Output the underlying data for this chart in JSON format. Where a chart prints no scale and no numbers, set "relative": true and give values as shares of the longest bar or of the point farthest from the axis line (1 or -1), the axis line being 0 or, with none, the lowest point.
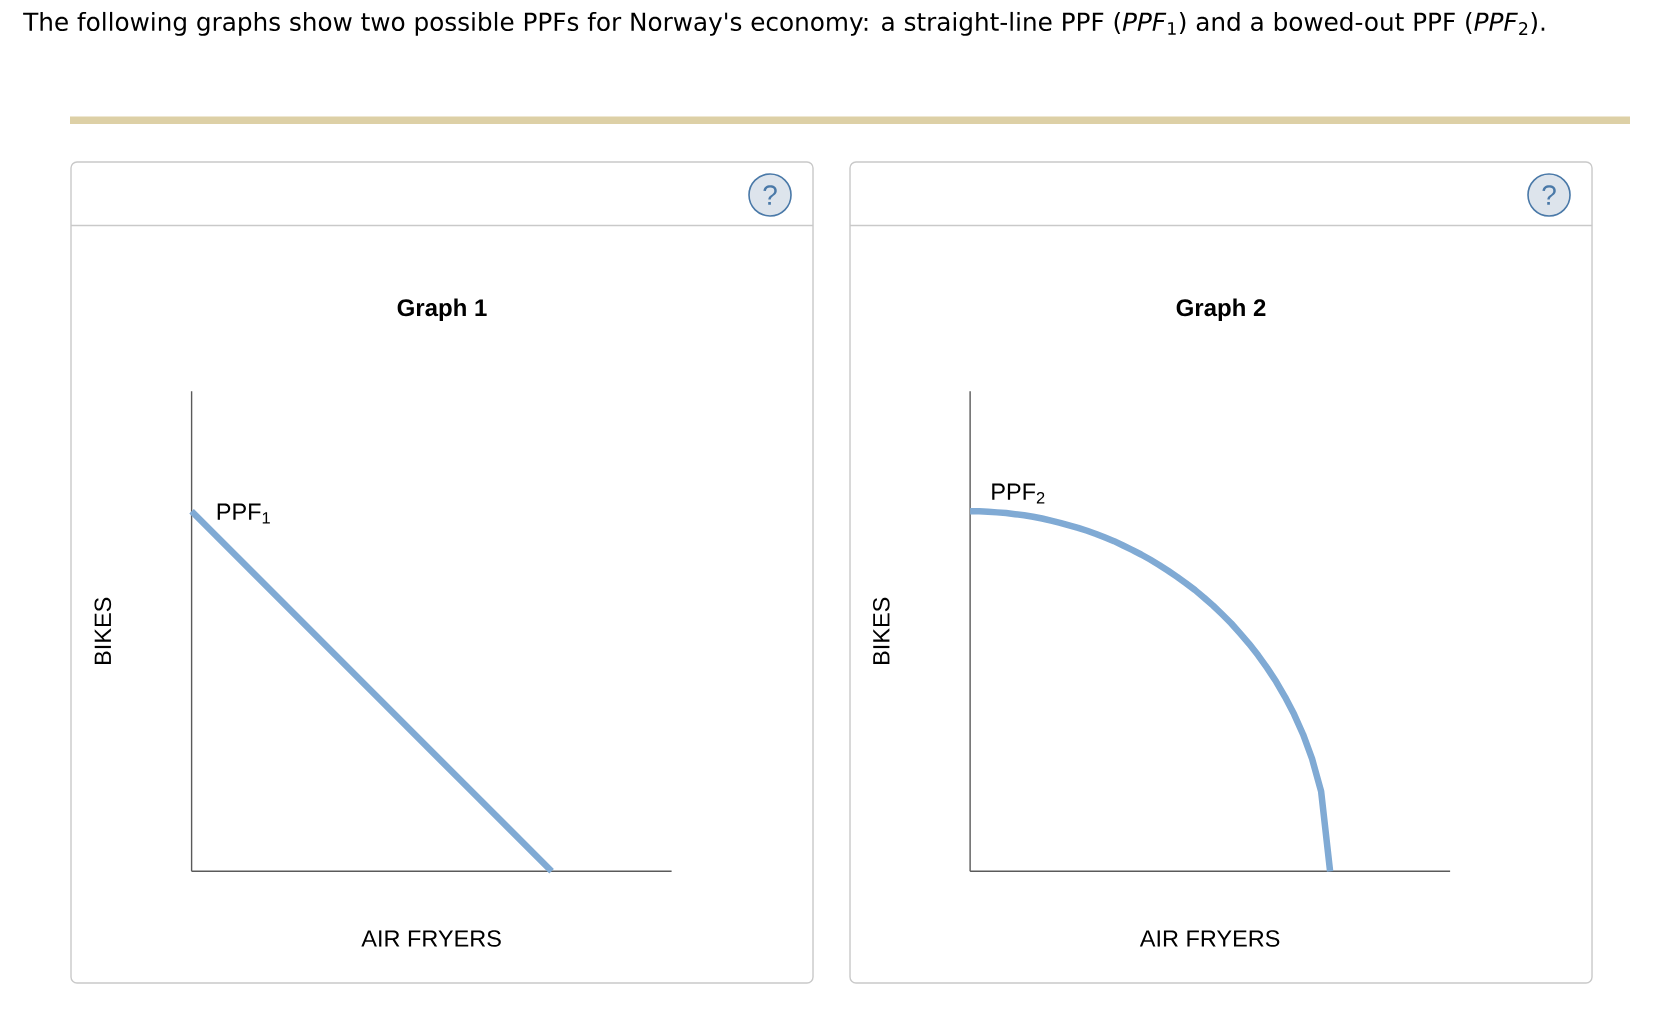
{
  "chart_data": [
    {
      "type": "other",
      "title": "The following graphs show two possible PPFs for Norway's economy: a straight-line PPF (*PPF*$_{1}$) and a bowed-out PPF (*PPF*$_{2}$)."
    },
    {
      "type": "line",
      "title": "Graph 1",
      "xlabel": "AIR FRYERS",
      "ylabel": "BIKES",
      "relative": true,
      "annotations": [
        "?"
      ],
      "categories": [
        null,
        null,
        null,
        null,
        null
      ],
      "series": [
        {
          "name": "PPF$_{1}$",
          "color": "#80aad4",
          "values": [
            1,
            0.75,
            0.5,
            0.25,
            0
          ]
        }
      ]
    },
    {
      "type": "line",
      "title": "Graph 2",
      "xlabel": "AIR FRYERS",
      "ylabel": "BIKES",
      "relative": true,
      "annotations": [
        "?"
      ],
      "categories": [
        null,
        null,
        null,
        null,
        null,
        null,
        null,
        null,
        null,
        null,
        null,
        null,
        null,
        null,
        null,
        null,
        null,
        null,
        null,
        null,
        null,
        null,
        null,
        null,
        null,
        null,
        null,
        null,
        null,
        null,
        null,
        null,
        null,
        null,
        null,
        null,
        null,
        null,
        null,
        null,
        null
      ],
      "series": [
        {
          "name": "PPF$_{2}$",
          "color": "#80aad4",
          "values": [
            1,
            1,
            0.999,
            0.997,
            0.995,
            0.992,
            0.989,
            0.985,
            0.98,
            0.974,
            0.968,
            0.961,
            0.954,
            0.946,
            0.937,
            0.927,
            0.917,
            0.905,
            0.893,
            0.88,
            0.866,
            0.851,
            0.835,
            0.818,
            0.8,
            0.781,
            0.76,
            0.738,
            0.714,
            0.689,
            0.661,
            0.632,
            0.6,
            0.565,
            0.527,
            0.484,
            0.436,
            0.38,
            0.312,
            0.222,
            0
          ]
        }
      ]
    }
  ]
}
